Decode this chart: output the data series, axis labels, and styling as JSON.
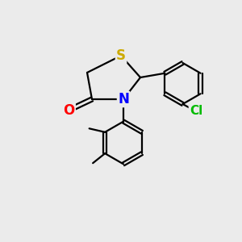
{
  "background_color": "#ebebeb",
  "atom_colors": {
    "S": "#ccaa00",
    "N": "#0000ff",
    "O": "#ff0000",
    "C": "#000000",
    "Cl": "#00bb00",
    "H": "#000000"
  },
  "bond_color": "#000000",
  "bond_width": 1.6,
  "font_size_S": 12,
  "font_size_N": 12,
  "font_size_O": 12,
  "font_size_Cl": 11,
  "figsize": [
    3.0,
    3.0
  ],
  "dpi": 100
}
